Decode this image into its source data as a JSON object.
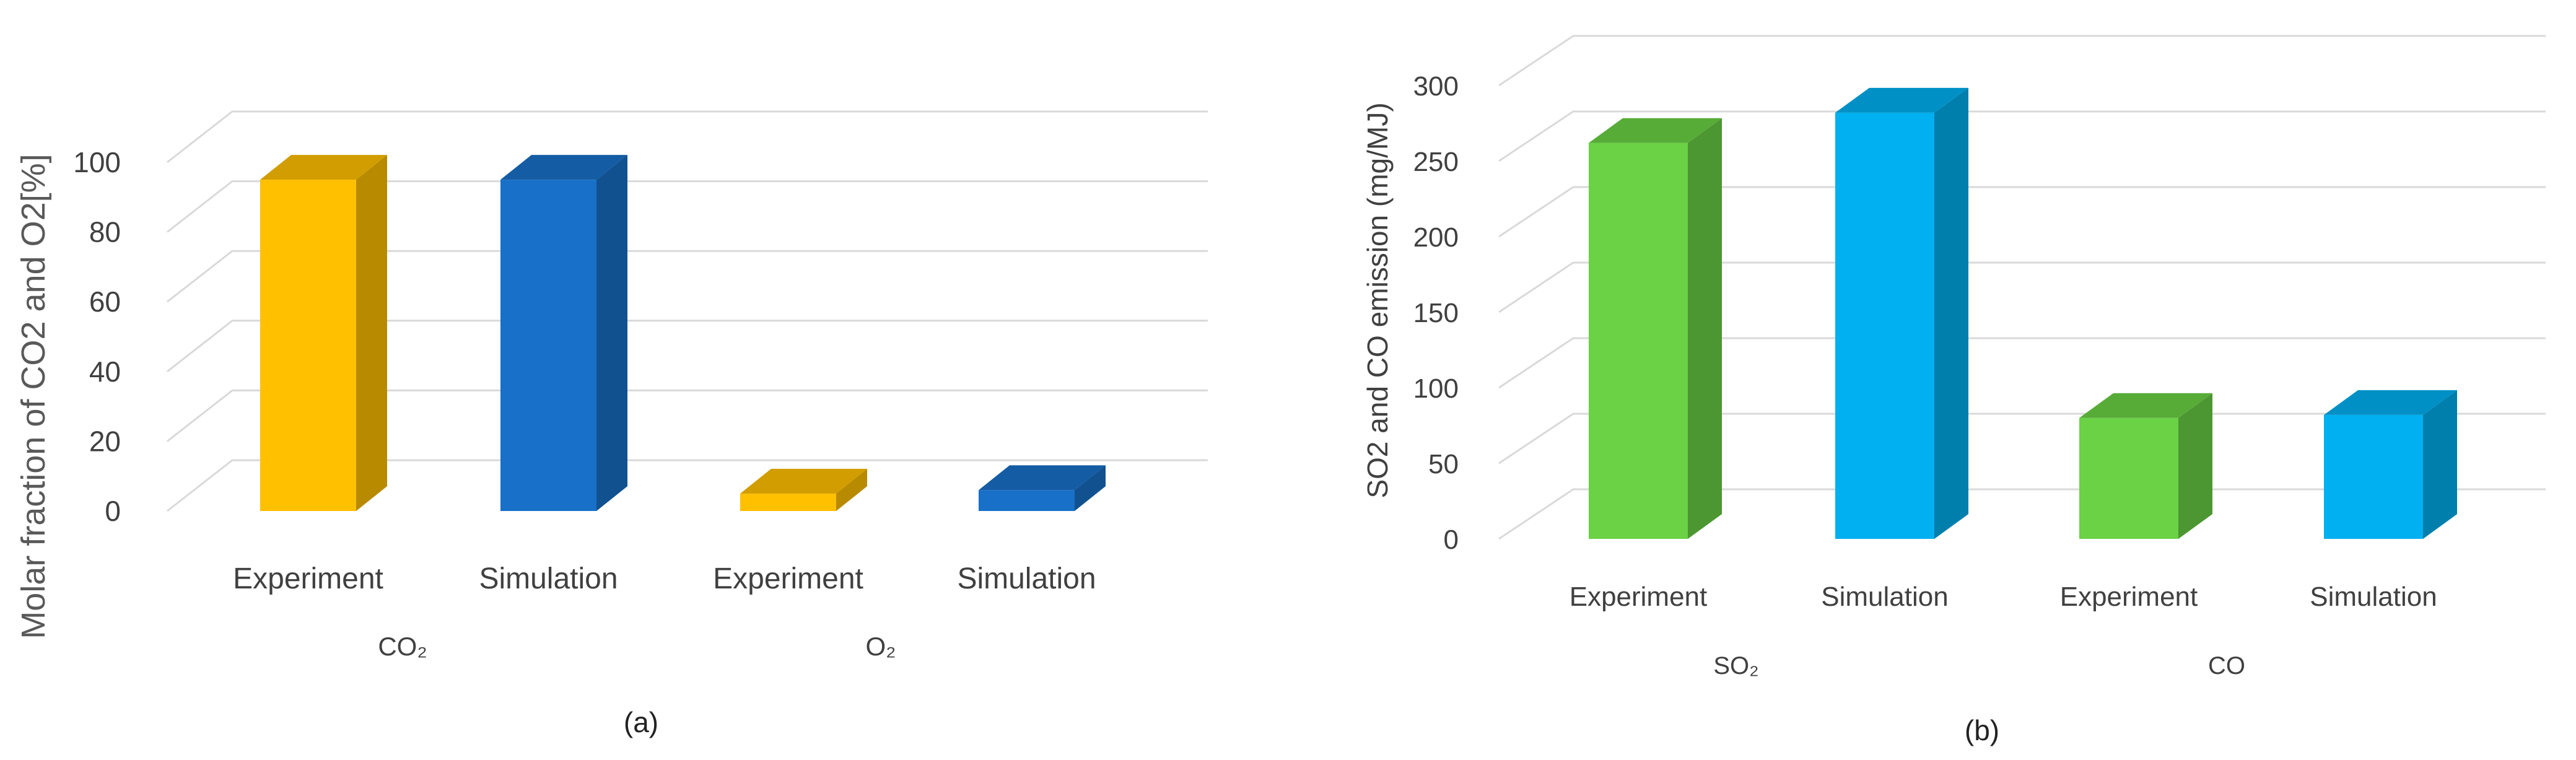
{
  "chart_data": [
    {
      "type": "bar",
      "panel_label": "(a)",
      "ylabel": "Molar fraction of CO2 and O2[%]",
      "ylim": [
        0,
        100
      ],
      "yticks": [
        0,
        20,
        40,
        60,
        80,
        100
      ],
      "grid": true,
      "legend": "none",
      "groups": [
        "CO₂",
        "O₂"
      ],
      "categories": [
        "Experiment",
        "Simulation",
        "Experiment",
        "Simulation"
      ],
      "values": [
        95,
        95,
        5,
        6
      ],
      "colors": [
        "#ffc000",
        "#1870c8",
        "#ffc000",
        "#1870c8"
      ]
    },
    {
      "type": "bar",
      "panel_label": "(b)",
      "ylabel": "SO2 and CO emission (mg/MJ)",
      "ylim": [
        0,
        300
      ],
      "yticks": [
        0,
        50,
        100,
        150,
        200,
        250,
        300
      ],
      "grid": true,
      "legend": "none",
      "groups": [
        "SO₂",
        "CO"
      ],
      "categories": [
        "Experiment",
        "Simulation",
        "Experiment",
        "Simulation"
      ],
      "values": [
        262,
        282,
        80,
        82
      ],
      "colors": [
        "#6ad244",
        "#00b0f0",
        "#6ad244",
        "#00b0f0"
      ]
    }
  ]
}
